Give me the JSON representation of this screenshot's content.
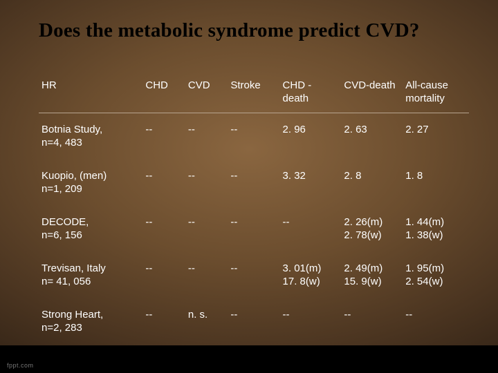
{
  "slide": {
    "title": "Does the metabolic syndrome predict CVD?",
    "title_fontsize": 29,
    "title_color": "#000000",
    "background_gradient": [
      "#8a6640",
      "#6b4d2e",
      "#4a3420",
      "#2e2014",
      "#0f0a06"
    ],
    "text_color": "#ffffff",
    "header_border_color": "#b8a590",
    "footer_bar_color": "#000000",
    "logo_text": "fppt.com"
  },
  "table": {
    "columns": [
      "HR",
      "CHD",
      "CVD",
      "Stroke",
      "CHD - death",
      "CVD-death",
      "All-cause mortality"
    ],
    "column_widths_pct": [
      22,
      9,
      9,
      11,
      13,
      13,
      14
    ],
    "header_fontsize": 15,
    "cell_fontsize": 15,
    "rows": [
      [
        "Botnia Study,\nn=4, 483",
        "--",
        "--",
        "--",
        "2. 96",
        "2. 63",
        "2. 27"
      ],
      [
        "Kuopio, (men)\nn=1, 209",
        "--",
        "--",
        "--",
        "3. 32",
        "2. 8",
        "1. 8"
      ],
      [
        "DECODE,\nn=6, 156",
        "--",
        "--",
        "--",
        "--",
        "2. 26(m)\n2. 78(w)",
        "1. 44(m)\n1. 38(w)"
      ],
      [
        "Trevisan, Italy\nn= 41, 056",
        "--",
        "--",
        "--",
        "3. 01(m)\n17. 8(w)",
        "2. 49(m)\n15. 9(w)",
        "1. 95(m)\n2. 54(w)"
      ],
      [
        "Strong Heart,\nn=2, 283",
        "--",
        "n. s.",
        "--",
        "--",
        "--",
        "--"
      ]
    ]
  }
}
